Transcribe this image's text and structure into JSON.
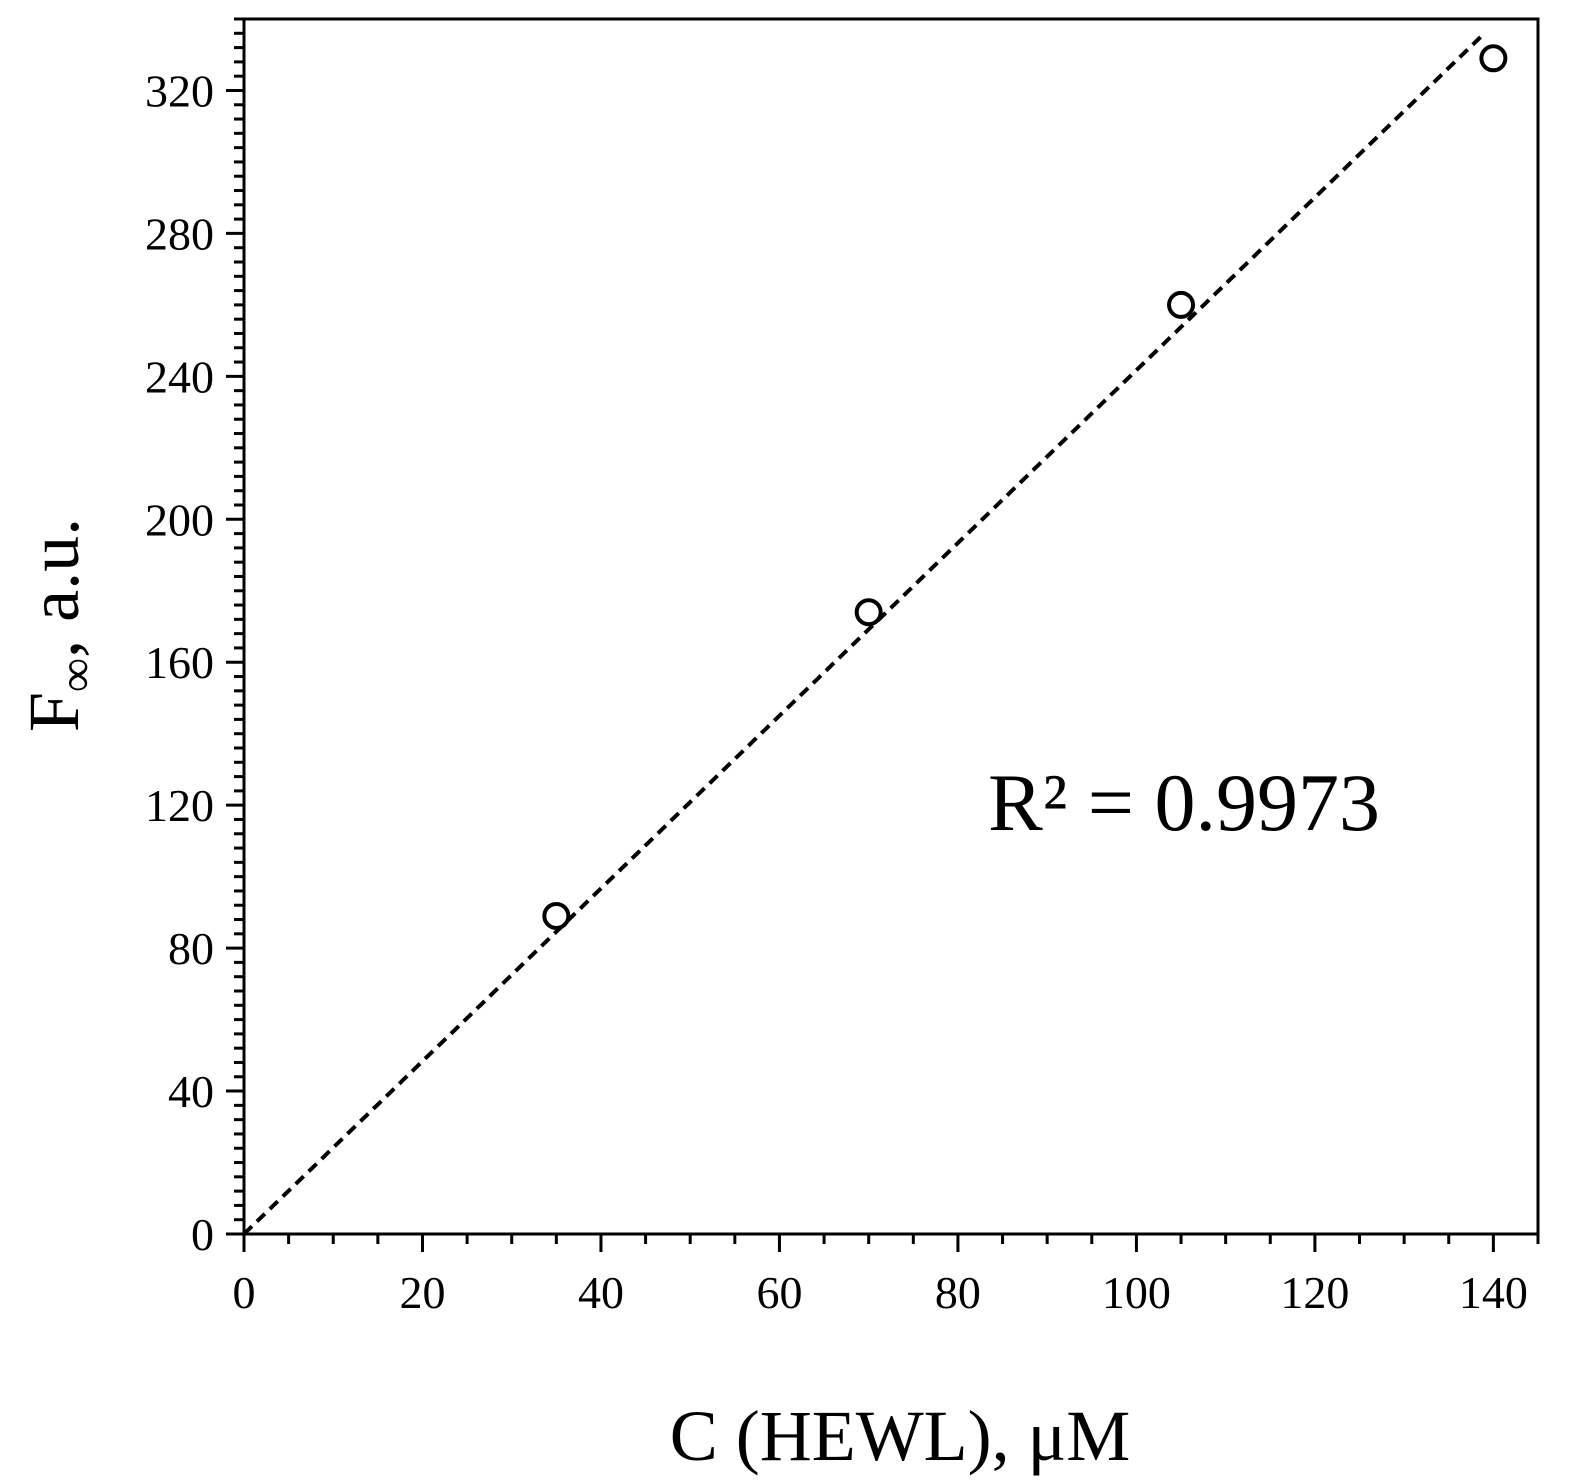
{
  "chart_data": {
    "type": "scatter",
    "xlabel": "C (HEWL), μM",
    "ylabel_main": "F",
    "ylabel_sub": "∞",
    "ylabel_rest": ", a.u.",
    "xlim": [
      0,
      145
    ],
    "ylim": [
      0,
      340
    ],
    "x_ticks": [
      0,
      20,
      40,
      60,
      80,
      100,
      120,
      140
    ],
    "y_ticks": [
      0,
      40,
      80,
      120,
      160,
      200,
      240,
      280,
      320
    ],
    "x_minor_step": 5,
    "y_minor_step": 4,
    "grid": false,
    "series": [
      {
        "marker": "open-circle",
        "x": [
          35,
          70,
          105,
          140
        ],
        "y": [
          89,
          174,
          260,
          329
        ]
      }
    ],
    "fit_line": {
      "style": "dashed",
      "x": [
        0,
        139
      ],
      "y": [
        0,
        336
      ]
    },
    "annotation": "R² = 0.9973"
  }
}
